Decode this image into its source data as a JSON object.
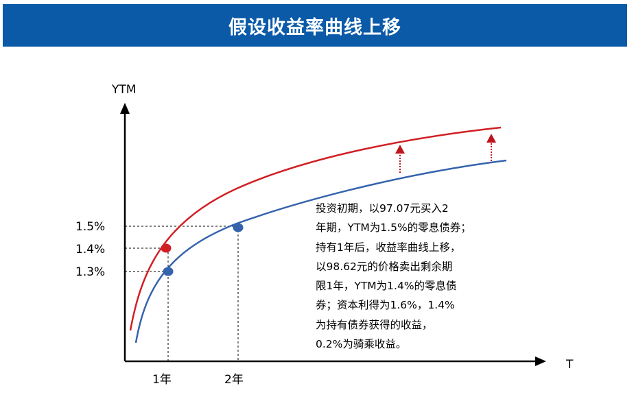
{
  "header": {
    "title": "假设收益率曲线上移"
  },
  "axes": {
    "y_label": "YTM",
    "x_label": "T"
  },
  "y_ticks": [
    "1.5%",
    "1.4%",
    "1.3%"
  ],
  "x_ticks": [
    "1年",
    "2年"
  ],
  "colors": {
    "header_bg": "#0a5aa8",
    "upper_curve": "#d11f24",
    "lower_curve": "#3563ad",
    "shift_arrow": "#c0141c"
  },
  "note_lines": [
    "投资初期，以97.07元买入2",
    "年期，YTM为1.5%的零息债券；",
    "持有1年后，收益率曲线上移，",
    "以98.62元的价格卖出剩余期",
    "限1年，YTM为1.4%的零息债",
    "券；资本利得为1.6%，1.4%",
    "为持有债券获得的收益，",
    "0.2%为骑乘收益。"
  ]
}
